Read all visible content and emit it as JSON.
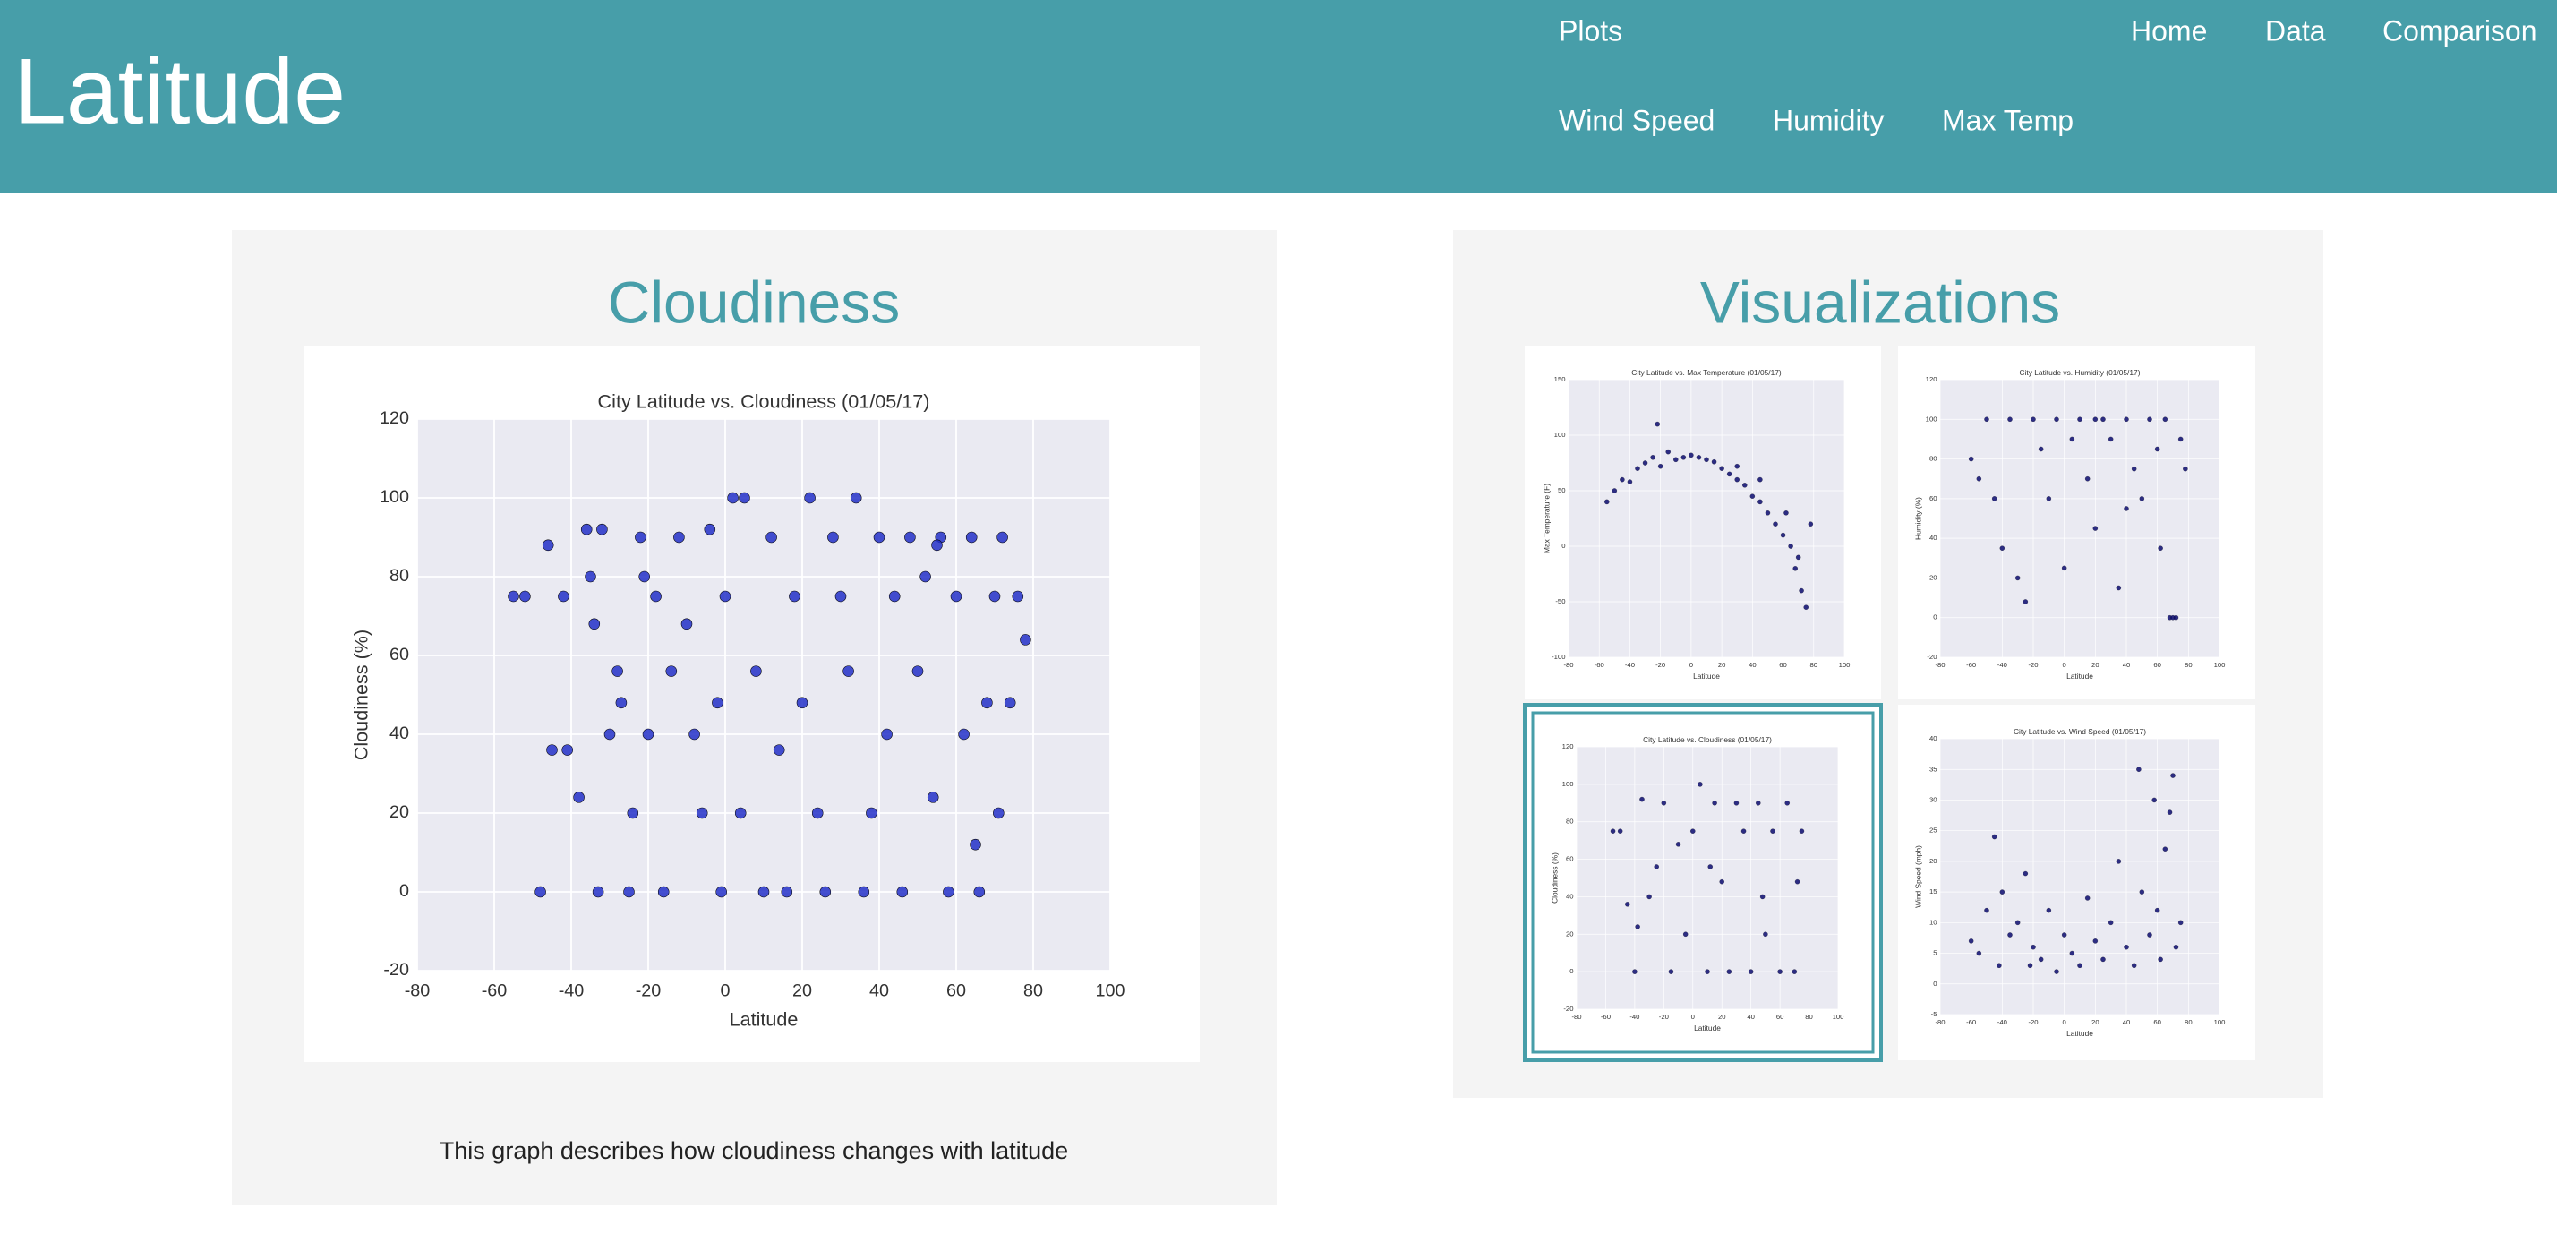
{
  "header": {
    "title": "Latitude"
  },
  "nav": {
    "plots": "Plots",
    "links": [
      "Home",
      "Data",
      "Comparison"
    ],
    "plot_links": [
      "Wind Speed",
      "Humidity",
      "Max Temp"
    ]
  },
  "main": {
    "title": "Cloudiness",
    "caption": "This graph describes how cloudiness changes with latitude"
  },
  "visualizations": {
    "title": "Visualizations"
  },
  "chart_data": [
    {
      "type": "scatter",
      "title": "City Latitude vs. Cloudiness (01/05/17)",
      "x_label": "Latitude",
      "y_label": "Cloudiness (%)",
      "color": "#2330c8",
      "grid": true,
      "xlim": [
        -80,
        100
      ],
      "xticks": [
        -80,
        -60,
        -40,
        -20,
        0,
        20,
        40,
        60,
        80,
        100
      ],
      "ylim": [
        -20,
        120
      ],
      "yticks": [
        -20,
        0,
        20,
        40,
        60,
        80,
        100,
        120
      ],
      "x": [
        -55,
        -52,
        -46,
        -45,
        -42,
        -41,
        -38,
        -36,
        -35,
        -34,
        -33,
        -32,
        -30,
        -28,
        -27,
        -25,
        -24,
        -22,
        -21,
        -20,
        -18,
        -16,
        -14,
        -12,
        -10,
        -8,
        -6,
        -4,
        -2,
        -1,
        0,
        2,
        4,
        5,
        8,
        10,
        12,
        14,
        16,
        18,
        20,
        22,
        24,
        26,
        28,
        30,
        32,
        34,
        36,
        38,
        40,
        42,
        44,
        46,
        48,
        50,
        52,
        54,
        56,
        58,
        60,
        62,
        64,
        66,
        68,
        70,
        71,
        72,
        74,
        76,
        78,
        -48,
        55,
        65
      ],
      "y": [
        75,
        75,
        88,
        36,
        75,
        36,
        24,
        92,
        80,
        68,
        0,
        92,
        40,
        56,
        48,
        0,
        20,
        90,
        80,
        40,
        75,
        0,
        56,
        90,
        68,
        40,
        20,
        92,
        48,
        0,
        75,
        100,
        20,
        100,
        56,
        0,
        90,
        36,
        0,
        75,
        48,
        100,
        20,
        0,
        90,
        75,
        56,
        100,
        0,
        20,
        90,
        40,
        75,
        0,
        90,
        56,
        80,
        24,
        90,
        0,
        75,
        40,
        90,
        0,
        48,
        75,
        20,
        90,
        48,
        75,
        64,
        0,
        88,
        12
      ]
    },
    {
      "type": "scatter",
      "title": "City Latitude vs. Max Temperature (01/05/17)",
      "x_label": "Latitude",
      "y_label": "Max Temperature (F)",
      "color": "#0b0b6e",
      "grid": true,
      "xlim": [
        -80,
        100
      ],
      "xticks": [
        -80,
        -60,
        -40,
        -20,
        0,
        20,
        40,
        60,
        80,
        100
      ],
      "ylim": [
        -100,
        150
      ],
      "yticks": [
        -100,
        -50,
        0,
        50,
        100,
        150
      ],
      "x": [
        -55,
        -50,
        -45,
        -40,
        -35,
        -30,
        -25,
        -22,
        -20,
        -15,
        -10,
        -5,
        0,
        5,
        10,
        15,
        20,
        25,
        30,
        35,
        40,
        45,
        50,
        55,
        60,
        62,
        65,
        68,
        70,
        72,
        75,
        78,
        45,
        30
      ],
      "y": [
        40,
        50,
        60,
        58,
        70,
        75,
        80,
        110,
        72,
        85,
        78,
        80,
        82,
        80,
        78,
        76,
        70,
        65,
        60,
        55,
        45,
        40,
        30,
        20,
        10,
        30,
        0,
        -20,
        -10,
        -40,
        -55,
        20,
        60,
        72
      ]
    },
    {
      "type": "scatter",
      "title": "City Latitude vs. Humidity (01/05/17)",
      "x_label": "Latitude",
      "y_label": "Humidity (%)",
      "color": "#0b0b6e",
      "grid": true,
      "xlim": [
        -80,
        100
      ],
      "xticks": [
        -80,
        -60,
        -40,
        -20,
        0,
        20,
        40,
        60,
        80,
        100
      ],
      "ylim": [
        -20,
        120
      ],
      "yticks": [
        -20,
        0,
        20,
        40,
        60,
        80,
        100,
        120
      ],
      "x": [
        -60,
        -55,
        -50,
        -45,
        -40,
        -35,
        -30,
        -25,
        -20,
        -15,
        -10,
        -5,
        0,
        5,
        10,
        15,
        20,
        25,
        30,
        35,
        40,
        45,
        50,
        55,
        60,
        62,
        65,
        68,
        70,
        72,
        75,
        78,
        40,
        20
      ],
      "y": [
        80,
        70,
        100,
        60,
        35,
        100,
        20,
        8,
        100,
        85,
        60,
        100,
        25,
        90,
        100,
        70,
        45,
        100,
        90,
        15,
        100,
        75,
        60,
        100,
        85,
        35,
        100,
        0,
        0,
        0,
        90,
        75,
        55,
        100
      ]
    },
    {
      "type": "scatter",
      "title": "City Latitude vs. Cloudiness (01/05/17)",
      "x_label": "Latitude",
      "y_label": "Cloudiness (%)",
      "color": "#0b0b6e",
      "grid": true,
      "xlim": [
        -80,
        100
      ],
      "xticks": [
        -80,
        -60,
        -40,
        -20,
        0,
        20,
        40,
        60,
        80,
        100
      ],
      "ylim": [
        -20,
        120
      ],
      "yticks": [
        -20,
        0,
        20,
        40,
        60,
        80,
        100,
        120
      ],
      "x": [
        -55,
        -50,
        -45,
        -40,
        -35,
        -30,
        -25,
        -20,
        -15,
        -10,
        -5,
        0,
        5,
        10,
        15,
        20,
        25,
        30,
        35,
        40,
        45,
        50,
        55,
        60,
        65,
        70,
        72,
        75,
        -38,
        12,
        48
      ],
      "y": [
        75,
        75,
        36,
        0,
        92,
        40,
        56,
        90,
        0,
        68,
        20,
        75,
        100,
        0,
        90,
        48,
        0,
        90,
        75,
        0,
        90,
        20,
        75,
        0,
        90,
        0,
        48,
        75,
        24,
        56,
        40
      ]
    },
    {
      "type": "scatter",
      "title": "City Latitude vs. Wind Speed (01/05/17)",
      "x_label": "Latitude",
      "y_label": "Wind Speed (mph)",
      "color": "#0b0b6e",
      "grid": true,
      "xlim": [
        -80,
        100
      ],
      "xticks": [
        -80,
        -60,
        -40,
        -20,
        0,
        20,
        40,
        60,
        80,
        100
      ],
      "ylim": [
        -5,
        40
      ],
      "yticks": [
        -5,
        0,
        5,
        10,
        15,
        20,
        25,
        30,
        35,
        40
      ],
      "x": [
        -60,
        -55,
        -50,
        -45,
        -42,
        -40,
        -35,
        -30,
        -25,
        -22,
        -20,
        -15,
        -10,
        -5,
        0,
        5,
        10,
        15,
        20,
        25,
        30,
        35,
        40,
        45,
        48,
        50,
        55,
        58,
        60,
        62,
        65,
        68,
        70,
        72,
        75
      ],
      "y": [
        7,
        5,
        12,
        24,
        3,
        15,
        8,
        10,
        18,
        3,
        6,
        4,
        12,
        2,
        8,
        5,
        3,
        14,
        7,
        4,
        10,
        20,
        6,
        3,
        35,
        15,
        8,
        30,
        12,
        4,
        22,
        28,
        34,
        6,
        10
      ]
    }
  ]
}
